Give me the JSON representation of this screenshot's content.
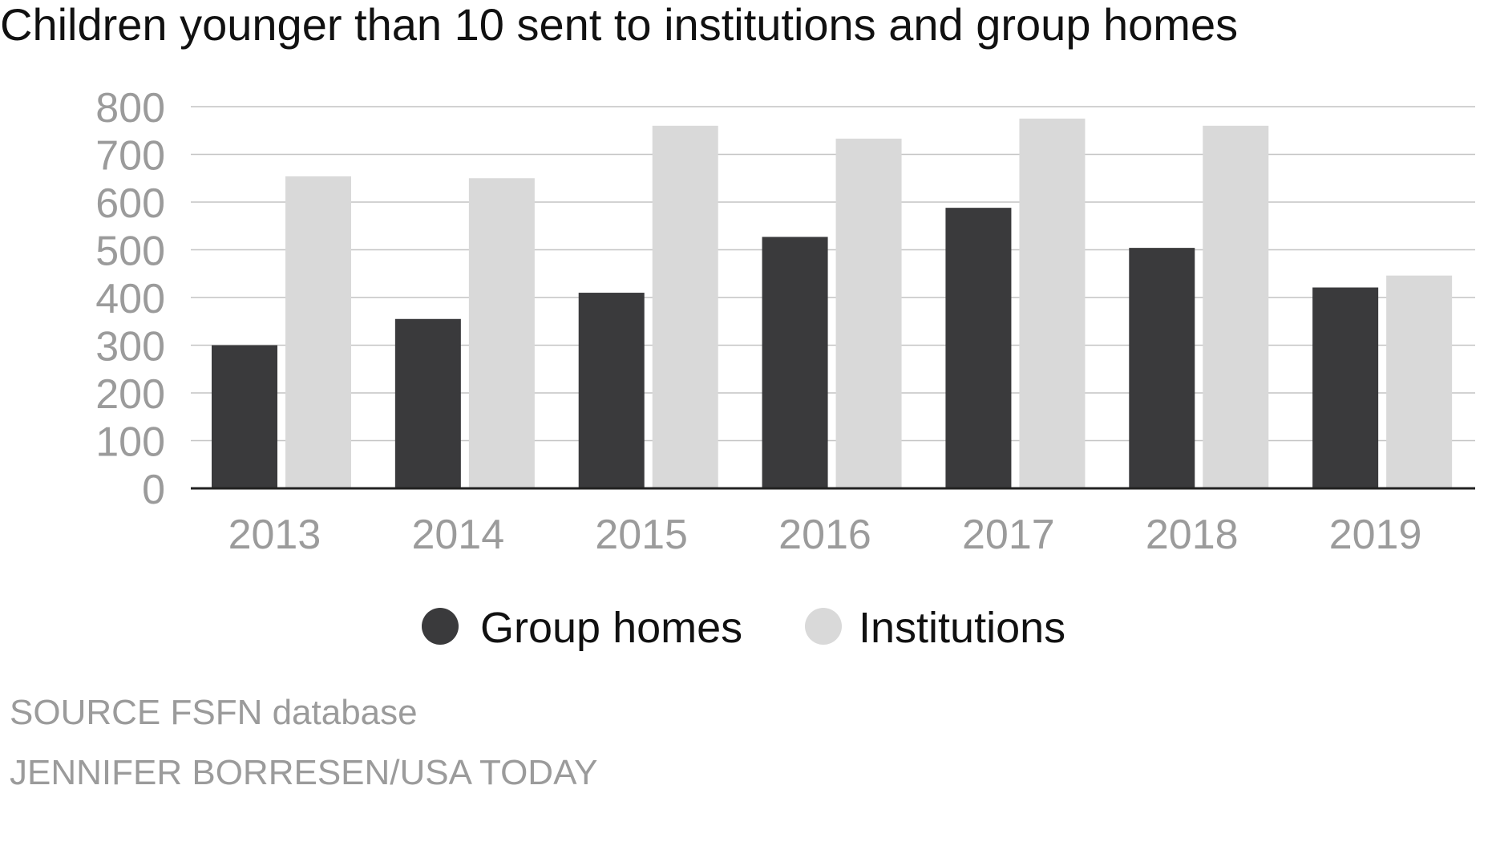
{
  "chart_data": {
    "type": "bar",
    "title": "Children younger than 10 sent to institutions and group homes",
    "xlabel": "",
    "ylabel": "",
    "categories": [
      "2013",
      "2014",
      "2015",
      "2016",
      "2017",
      "2018",
      "2019"
    ],
    "series": [
      {
        "name": "Group homes",
        "color": "#3a3a3c",
        "values": [
          300,
          355,
          410,
          527,
          588,
          504,
          421
        ]
      },
      {
        "name": "Institutions",
        "color": "#d9d9d9",
        "values": [
          654,
          650,
          760,
          733,
          775,
          760,
          446
        ]
      }
    ],
    "ylim": [
      0,
      800
    ],
    "yticks": [
      "0",
      "100",
      "200",
      "300",
      "400",
      "500",
      "600",
      "700",
      "800"
    ],
    "grid": true,
    "legend_position": "bottom-center"
  },
  "footer": {
    "source": "SOURCE  FSFN database",
    "credit": "JENNIFER BORRESEN/USA TODAY"
  }
}
